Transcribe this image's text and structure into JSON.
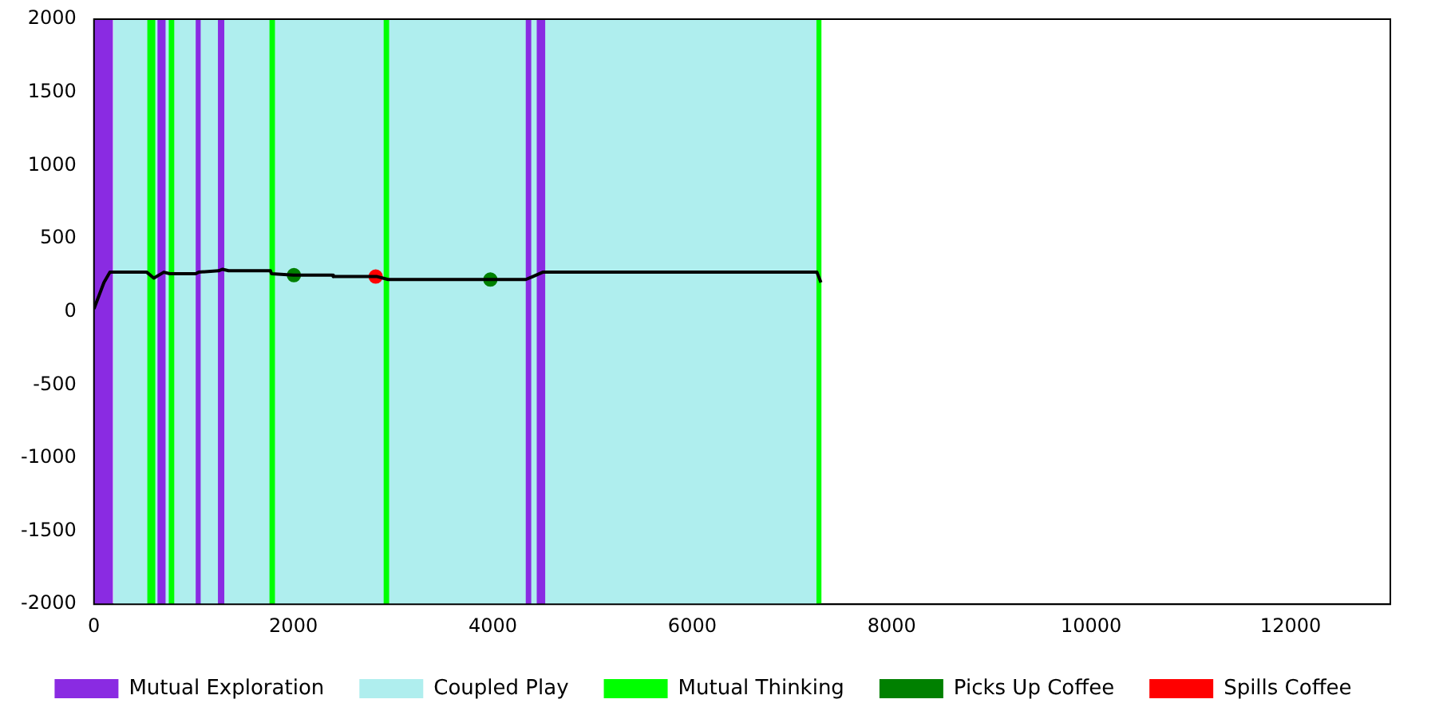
{
  "chart_data": {
    "type": "line",
    "xlim": [
      0,
      13000
    ],
    "xticks": [
      0,
      2000,
      4000,
      6000,
      8000,
      10000,
      12000
    ],
    "ylim": [
      -2000,
      2000
    ],
    "yticks": [
      -2000,
      -1500,
      -1000,
      -500,
      0,
      500,
      1000,
      1500,
      2000
    ],
    "grid": false,
    "legend": "bottom",
    "marker": "none",
    "line_style": "solid",
    "bands": [
      {
        "axis": "x",
        "from": 0,
        "to": 190,
        "label": "Mutual Exploration",
        "color": "#8a2be2"
      },
      {
        "axis": "x",
        "from": 195,
        "to": 7270,
        "label": "Coupled Play",
        "color": "#afeeee"
      },
      {
        "axis": "x",
        "from": 535,
        "to": 615,
        "label": "Mutual Thinking",
        "color": "#00ff00"
      },
      {
        "axis": "x",
        "from": 637,
        "to": 718,
        "color": "#8a2be2"
      },
      {
        "axis": "x",
        "from": 750,
        "to": 805,
        "color": "#00ff00"
      },
      {
        "axis": "x",
        "from": 1020,
        "to": 1070,
        "color": "#8a2be2"
      },
      {
        "axis": "x",
        "from": 1243,
        "to": 1307,
        "color": "#8a2be2"
      },
      {
        "axis": "x",
        "from": 1760,
        "to": 1815,
        "color": "#00ff00"
      },
      {
        "axis": "x",
        "from": 2905,
        "to": 2960,
        "color": "#00ff00"
      },
      {
        "axis": "x",
        "from": 4330,
        "to": 4385,
        "color": "#8a2be2"
      },
      {
        "axis": "x",
        "from": 4440,
        "to": 4525,
        "color": "#8a2be2"
      },
      {
        "axis": "x",
        "from": 7245,
        "to": 7295,
        "color": "#00ff00"
      }
    ],
    "series": [
      {
        "color": "#000000",
        "x": [
          0,
          100,
          160,
          530,
          600,
          700,
          760,
          1020,
          1050,
          1250,
          1290,
          1350,
          1770,
          1780,
          2000,
          2390,
          2400,
          2840,
          2950,
          4330,
          4400,
          4500,
          7250,
          7290
        ],
        "values": [
          20,
          200,
          270,
          270,
          230,
          270,
          260,
          260,
          270,
          280,
          290,
          280,
          280,
          260,
          250,
          250,
          240,
          240,
          220,
          220,
          240,
          270,
          270,
          200
        ]
      },
      {
        "type": "scatter",
        "name": "Picks Up Coffee",
        "color": "#008000",
        "marker": "circle",
        "x": [
          2005,
          3975
        ],
        "values": [
          250,
          220
        ]
      },
      {
        "type": "scatter",
        "name": "Spills Coffee",
        "color": "#ff0000",
        "marker": "circle",
        "x": [
          2825
        ],
        "values": [
          240
        ]
      }
    ]
  }
}
